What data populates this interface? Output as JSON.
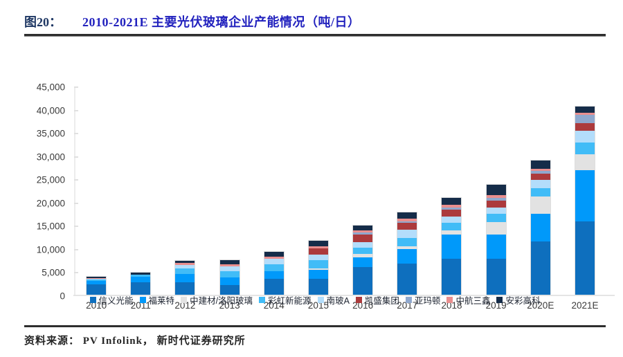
{
  "header": {
    "figure_label": "图20：",
    "title": "2010-2021E 主要光伏玻璃企业产能情况（吨/日）"
  },
  "footer": {
    "source": "资料来源： PV Infolink， 新时代证券研究所"
  },
  "chart_data": {
    "type": "bar",
    "stacked": true,
    "title": "2010-2021E 主要光伏玻璃企业产能情况（吨/日）",
    "unit": "吨/日",
    "xlabel": "",
    "ylabel": "",
    "ylim": [
      0,
      45000
    ],
    "ytick_step": 5000,
    "ytick_labels": [
      "0",
      "5,000",
      "10,000",
      "15,000",
      "20,000",
      "25,000",
      "30,000",
      "35,000",
      "40,000",
      "45,000"
    ],
    "grid": false,
    "legend_position": "bottom",
    "categories": [
      "2010",
      "2011",
      "2012",
      "2013",
      "2014",
      "2015",
      "2016",
      "2017",
      "2018",
      "2019",
      "2020E",
      "2021E"
    ],
    "series": [
      {
        "name": "信义光能",
        "color": "#0E6FBE",
        "values": [
          2200,
          2700,
          2750,
          2100,
          3500,
          3500,
          6000,
          6750,
          7750,
          7750,
          11500,
          15800
        ]
      },
      {
        "name": "福莱特",
        "color": "#0099FA",
        "values": [
          700,
          1150,
          1750,
          1650,
          1600,
          2000,
          2100,
          3150,
          5250,
          5250,
          6000,
          11000
        ]
      },
      {
        "name": "中建材/洛阳玻璃",
        "color": "#E2E2E2",
        "values": [
          0,
          0,
          0,
          0,
          0,
          300,
          750,
          600,
          900,
          2750,
          3750,
          3400
        ]
      },
      {
        "name": "彩虹新能源",
        "color": "#41BCF7",
        "values": [
          300,
          500,
          1150,
          1350,
          1500,
          1750,
          1400,
          1800,
          1600,
          1850,
          1750,
          2500
        ]
      },
      {
        "name": "南玻A",
        "color": "#B3DDFB",
        "values": [
          150,
          0,
          700,
          1000,
          1250,
          1150,
          1150,
          1800,
          1400,
          1300,
          1750,
          2600
        ]
      },
      {
        "name": "凯盛集团",
        "color": "#AC3A3C",
        "values": [
          0,
          0,
          0,
          0,
          0,
          1350,
          1600,
          1500,
          1500,
          1500,
          1350,
          1650
        ]
      },
      {
        "name": "亚玛顿",
        "color": "#8FA8CE",
        "values": [
          0,
          0,
          0,
          0,
          0,
          0,
          500,
          300,
          500,
          600,
          650,
          1850
        ]
      },
      {
        "name": "中航三鑫",
        "color": "#EA8E8E",
        "values": [
          100,
          0,
          400,
          400,
          500,
          400,
          400,
          600,
          600,
          600,
          500,
          500
        ]
      },
      {
        "name": "安彩高科",
        "color": "#152C49",
        "values": [
          250,
          400,
          500,
          850,
          1000,
          1150,
          1000,
          1350,
          1500,
          2300,
          1850,
          1400
        ]
      }
    ]
  }
}
